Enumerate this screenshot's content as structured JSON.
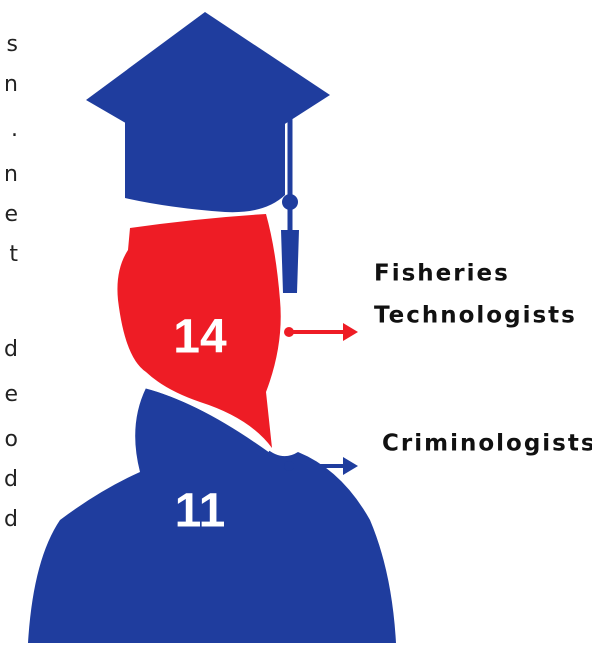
{
  "side_text_fragments": [
    "s",
    "n",
    ".",
    "n",
    "e",
    "t",
    "d",
    "e",
    "o",
    "d",
    "d"
  ],
  "groups": [
    {
      "label_lines": [
        "Fisheries",
        "Technologists"
      ],
      "count": "14"
    },
    {
      "label_lines": [
        "Criminologists"
      ],
      "count": "11"
    }
  ]
}
